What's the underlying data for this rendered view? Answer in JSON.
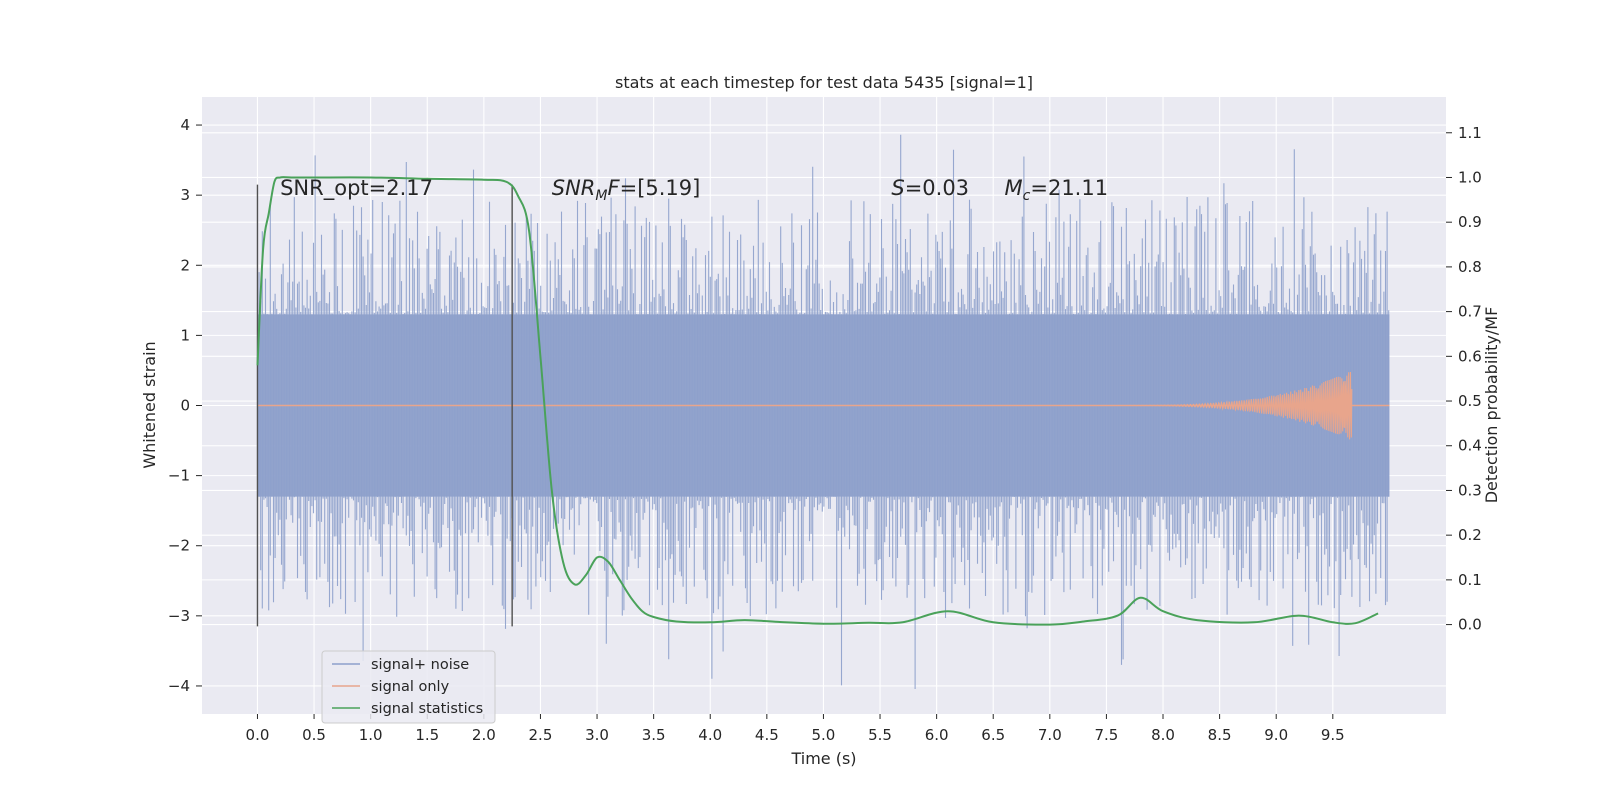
{
  "chart_data": {
    "type": "line",
    "title": "stats at each timestep for test data 5435 [signal=1]",
    "xlabel": "Time (s)",
    "ylabel": "Whitened strain",
    "ylabel_right": "Detection probability/MF",
    "xlim": [
      -0.49,
      10.5
    ],
    "ylim": [
      -4.4,
      4.4
    ],
    "ylim_right": [
      -0.2,
      1.18
    ],
    "x_ticks": [
      0.0,
      0.5,
      1.0,
      1.5,
      2.0,
      2.5,
      3.0,
      3.5,
      4.0,
      4.5,
      5.0,
      5.5,
      6.0,
      6.5,
      7.0,
      7.5,
      8.0,
      8.5,
      9.0,
      9.5
    ],
    "x_tick_labels": [
      "0.0",
      "0.5",
      "1.0",
      "1.5",
      "2.0",
      "2.5",
      "3.0",
      "3.5",
      "4.0",
      "4.5",
      "5.0",
      "5.5",
      "6.0",
      "6.5",
      "7.0",
      "7.5",
      "8.0",
      "8.5",
      "9.0",
      "9.5"
    ],
    "y_ticks": [
      -4,
      -3,
      -2,
      -1,
      0,
      1,
      2,
      3,
      4
    ],
    "y_tick_labels": [
      "−4",
      "−3",
      "−2",
      "−1",
      "0",
      "1",
      "2",
      "3",
      "4"
    ],
    "y_ticks_right": [
      0.0,
      0.1,
      0.2,
      0.3,
      0.4,
      0.5,
      0.6,
      0.7,
      0.8,
      0.9,
      1.0,
      1.1
    ],
    "y_tick_labels_right": [
      "0.0",
      "0.1",
      "0.2",
      "0.3",
      "0.4",
      "0.5",
      "0.6",
      "0.7",
      "0.8",
      "0.9",
      "1.0",
      "1.1"
    ],
    "grid": true,
    "legend_position": "lower-left",
    "series": [
      {
        "name": "signal+ noise",
        "axis": "left",
        "color": "#8da0cb",
        "kind": "noise",
        "t_range": [
          0.0,
          10.0
        ],
        "envelope_core": 1.3,
        "peak_max": 4.0,
        "peak_min": -4.1
      },
      {
        "name": "signal only",
        "axis": "left",
        "color": "#e8a58c",
        "kind": "chirp",
        "t_range": [
          7.5,
          9.67
        ],
        "peak_amplitude": 0.5
      },
      {
        "name": "signal statistics",
        "axis": "right",
        "color": "#4aa25a",
        "kind": "line",
        "x": [
          0.0,
          0.05,
          0.1,
          0.15,
          0.2,
          0.3,
          0.5,
          1.0,
          1.5,
          2.0,
          2.2,
          2.3,
          2.4,
          2.5,
          2.6,
          2.7,
          2.8,
          2.9,
          3.0,
          3.1,
          3.2,
          3.3,
          3.4,
          3.5,
          3.7,
          4.0,
          4.3,
          4.6,
          5.0,
          5.4,
          5.7,
          6.1,
          6.5,
          7.0,
          7.3,
          7.6,
          7.8,
          8.0,
          8.3,
          8.8,
          9.2,
          9.5,
          9.7,
          9.9
        ],
        "y": [
          0.58,
          0.84,
          0.92,
          0.99,
          1.0,
          1.0,
          1.0,
          1.0,
          0.997,
          0.995,
          0.99,
          0.96,
          0.88,
          0.6,
          0.3,
          0.14,
          0.09,
          0.11,
          0.15,
          0.14,
          0.1,
          0.06,
          0.03,
          0.017,
          0.007,
          0.005,
          0.01,
          0.006,
          0.002,
          0.004,
          0.005,
          0.03,
          0.005,
          0.0,
          0.007,
          0.02,
          0.06,
          0.03,
          0.01,
          0.005,
          0.02,
          0.005,
          0.003,
          0.025
        ]
      }
    ],
    "vertical_lines": [
      0.0,
      2.25
    ],
    "annotations": [
      {
        "text": "SNR_opt=2.17",
        "x": 0.2,
        "y": 3.1
      },
      {
        "text": "SNR_MF=[5.19]",
        "x": 2.6,
        "y": 3.1
      },
      {
        "text": "S=0.03",
        "x": 5.6,
        "y": 3.1
      },
      {
        "text": "M_c=21.11",
        "x": 6.6,
        "y": 3.1
      }
    ],
    "colors": {
      "background": "#eaeaf2",
      "grid": "#ffffff",
      "text": "#262626",
      "vline": "#505050"
    }
  }
}
